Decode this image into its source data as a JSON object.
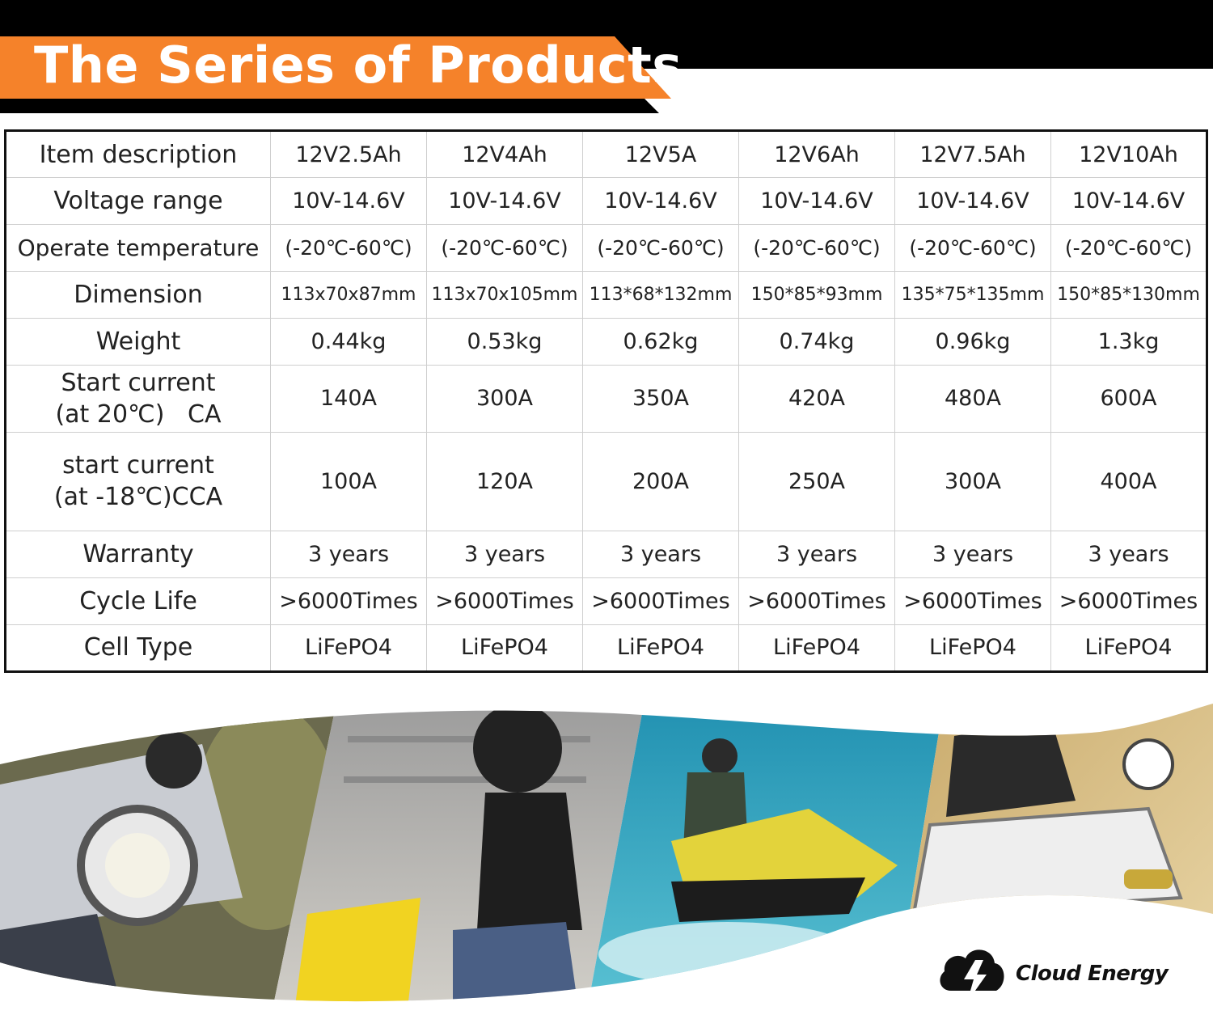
{
  "banner": {
    "title": "The Series of Products"
  },
  "table": {
    "rows": [
      {
        "label": "Item description",
        "values": [
          "12V2.5Ah",
          "12V4Ah",
          "12V5A",
          "12V6Ah",
          "12V7.5Ah",
          "12V10Ah"
        ]
      },
      {
        "label": "Voltage range",
        "values": [
          "10V-14.6V",
          "10V-14.6V",
          "10V-14.6V",
          "10V-14.6V",
          "10V-14.6V",
          "10V-14.6V"
        ]
      },
      {
        "label": "Operate temperature",
        "values": [
          "(-20℃-60℃)",
          "(-20℃-60℃)",
          "(-20℃-60℃)",
          "(-20℃-60℃)",
          "(-20℃-60℃)",
          "(-20℃-60℃)"
        ]
      },
      {
        "label": "Dimension",
        "values": [
          "113x70x87mm",
          "113x70x105mm",
          "113*68*132mm",
          "150*85*93mm",
          "135*75*135mm",
          "150*85*130mm"
        ]
      },
      {
        "label": "Weight",
        "values": [
          "0.44kg",
          "0.53kg",
          "0.62kg",
          "0.74kg",
          "0.96kg",
          "1.3kg"
        ]
      },
      {
        "label_line1": "Start current",
        "label_line2": "(at 20℃)   CA",
        "values": [
          "140A",
          "300A",
          "350A",
          "420A",
          "480A",
          "600A"
        ]
      },
      {
        "label_line1": "start current",
        "label_line2": "(at -18℃)CCA",
        "values": [
          "100A",
          "120A",
          "200A",
          "250A",
          "300A",
          "400A"
        ]
      },
      {
        "label": "Warranty",
        "values": [
          "3 years",
          "3 years",
          "3 years",
          "3 years",
          "3 years",
          "3 years"
        ]
      },
      {
        "label": "Cycle Life",
        "values": [
          ">6000Times",
          ">6000Times",
          ">6000Times",
          ">6000Times",
          ">6000Times",
          ">6000Times"
        ]
      },
      {
        "label": "Cell Type",
        "values": [
          "LiFePO4",
          "LiFePO4",
          "LiFePO4",
          "LiFePO4",
          "LiFePO4",
          "LiFePO4"
        ]
      }
    ]
  },
  "collage": {
    "panels": [
      "motorcycle-rider",
      "scooter-rider",
      "jet-ski-rider",
      "atv-rider"
    ]
  },
  "brand": {
    "name": "Cloud Energy",
    "icon": "cloud-lightning-icon"
  },
  "colors": {
    "banner_orange": "#f5822a",
    "banner_black": "#000000"
  }
}
